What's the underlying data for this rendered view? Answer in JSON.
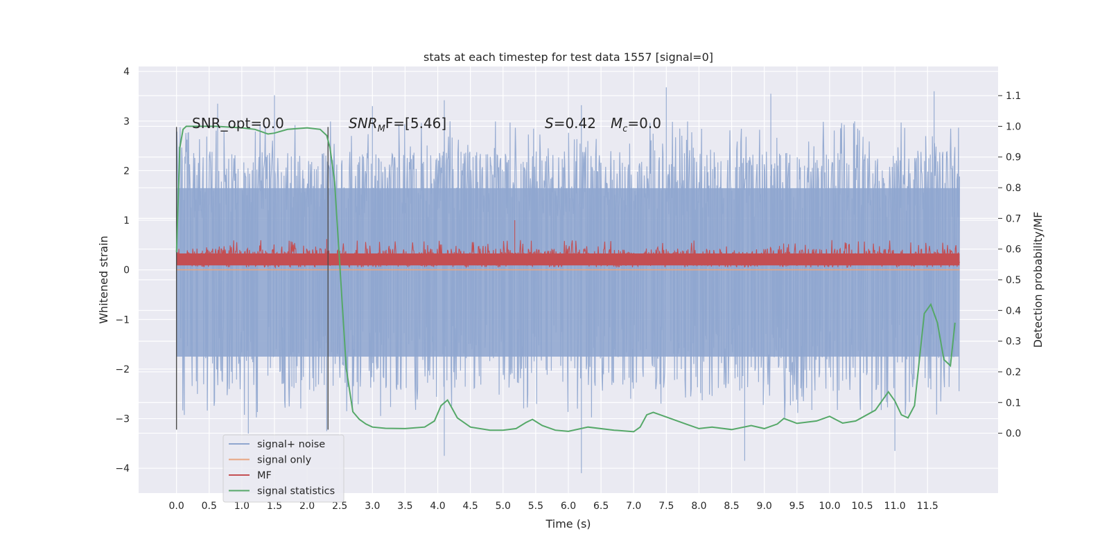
{
  "chart_data": {
    "type": "line",
    "title": "stats at each timestep for test data 1557 [signal=0]",
    "xlabel": "Time (s)",
    "ylabel": "Whitened strain",
    "ylabel_right": "Detection probability/MF",
    "xlim": [
      -0.58,
      12.58
    ],
    "ylim": [
      -4.5,
      4.1
    ],
    "ylim_right": [
      -0.195,
      1.195
    ],
    "x_ticks": [
      0.0,
      0.5,
      1.0,
      1.5,
      2.0,
      2.5,
      3.0,
      3.5,
      4.0,
      4.5,
      5.0,
      5.5,
      6.0,
      6.5,
      7.0,
      7.5,
      8.0,
      8.5,
      9.0,
      9.5,
      10.0,
      10.5,
      11.0,
      11.5
    ],
    "x_tick_labels": [
      "0.0",
      "0.5",
      "1.0",
      "1.5",
      "2.0",
      "2.5",
      "3.0",
      "3.5",
      "4.0",
      "4.5",
      "5.0",
      "5.5",
      "6.0",
      "6.5",
      "7.0",
      "7.5",
      "8.0",
      "8.5",
      "9.0",
      "9.5",
      "10.0",
      "10.5",
      "11.0",
      "11.5"
    ],
    "y_ticks": [
      -4,
      -3,
      -2,
      -1,
      0,
      1,
      2,
      3,
      4
    ],
    "y_tick_labels": [
      "−4",
      "−3",
      "−2",
      "−1",
      "0",
      "1",
      "2",
      "3",
      "4"
    ],
    "y_ticks_right": [
      0.0,
      0.1,
      0.2,
      0.3,
      0.4,
      0.5,
      0.6,
      0.7,
      0.8,
      0.9,
      1.0,
      1.1
    ],
    "y_tick_labels_right": [
      "0.0",
      "0.1",
      "0.2",
      "0.3",
      "0.4",
      "0.5",
      "0.6",
      "0.7",
      "0.8",
      "0.9",
      "1.0",
      "1.1"
    ],
    "grid": true,
    "legend_position": "lower-left",
    "annotations": {
      "snr_opt": "SNR_opt=0.0",
      "snr_mf_main": "SNR",
      "snr_mf_sub": "M",
      "snr_mf_rest": "F=[5.46]",
      "s_sym": "S",
      "s_value": "=0.42",
      "mc_sym": "M",
      "mc_sub": "c",
      "mc_value": "=0.0"
    },
    "vertical_markers": [
      0.0,
      2.32
    ],
    "series": [
      {
        "name": "signal+ noise",
        "color": "#8fa6cf",
        "x_range": [
          0.0,
          11.99
        ],
        "band_core": [
          -1.75,
          1.65
        ],
        "peaks": [
          {
            "x": 0.63,
            "y": 3.35
          },
          {
            "x": 1.5,
            "y": 3.52
          },
          {
            "x": 3.0,
            "y": 3.3
          },
          {
            "x": 4.1,
            "y": 3.42
          },
          {
            "x": 6.2,
            "y": 3.32
          },
          {
            "x": 7.5,
            "y": 3.68
          },
          {
            "x": 9.1,
            "y": 3.55
          },
          {
            "x": 11.6,
            "y": 3.6
          }
        ],
        "troughs": [
          {
            "x": 1.1,
            "y": -3.3
          },
          {
            "x": 2.3,
            "y": -3.25
          },
          {
            "x": 4.1,
            "y": -3.75
          },
          {
            "x": 6.2,
            "y": -4.1
          },
          {
            "x": 8.7,
            "y": -3.85
          },
          {
            "x": 11.0,
            "y": -3.65
          }
        ]
      },
      {
        "name": "signal only",
        "color": "#e8a47f",
        "values_note": "flat at 0",
        "x": [
          0.0,
          11.99
        ],
        "y": [
          0.0,
          0.0
        ]
      },
      {
        "name": "MF",
        "color": "#c44e52",
        "x_range": [
          0.0,
          11.99
        ],
        "band_core": [
          0.05,
          0.4
        ],
        "spikes": [
          {
            "x": 5.18,
            "y": 1.0
          },
          {
            "x": 2.3,
            "y": 0.62
          }
        ]
      },
      {
        "name": "signal statistics",
        "color": "#55a868",
        "axis": "right",
        "x": [
          0.0,
          0.05,
          0.1,
          0.15,
          0.3,
          0.6,
          1.0,
          1.2,
          1.4,
          1.5,
          1.7,
          2.0,
          2.2,
          2.3,
          2.35,
          2.42,
          2.5,
          2.6,
          2.7,
          2.8,
          2.9,
          3.0,
          3.2,
          3.5,
          3.8,
          3.95,
          4.05,
          4.15,
          4.3,
          4.5,
          4.8,
          5.0,
          5.2,
          5.35,
          5.45,
          5.6,
          5.8,
          6.0,
          6.3,
          6.7,
          7.0,
          7.1,
          7.2,
          7.3,
          7.6,
          7.8,
          8.0,
          8.2,
          8.5,
          8.8,
          9.0,
          9.2,
          9.3,
          9.5,
          9.8,
          10.0,
          10.2,
          10.4,
          10.7,
          10.9,
          11.0,
          11.1,
          11.2,
          11.3,
          11.45,
          11.55,
          11.65,
          11.75,
          11.85,
          11.92
        ],
        "y": [
          0.59,
          0.93,
          0.99,
          1.0,
          1.0,
          1.0,
          0.995,
          0.99,
          0.975,
          0.978,
          0.99,
          0.995,
          0.99,
          0.97,
          0.93,
          0.82,
          0.55,
          0.21,
          0.07,
          0.045,
          0.03,
          0.02,
          0.016,
          0.015,
          0.02,
          0.04,
          0.09,
          0.108,
          0.05,
          0.02,
          0.01,
          0.01,
          0.015,
          0.035,
          0.045,
          0.025,
          0.01,
          0.006,
          0.02,
          0.01,
          0.005,
          0.02,
          0.06,
          0.068,
          0.045,
          0.03,
          0.015,
          0.02,
          0.012,
          0.025,
          0.015,
          0.03,
          0.048,
          0.032,
          0.04,
          0.055,
          0.033,
          0.04,
          0.075,
          0.135,
          0.105,
          0.06,
          0.05,
          0.09,
          0.39,
          0.42,
          0.36,
          0.24,
          0.22,
          0.36
        ]
      }
    ]
  }
}
